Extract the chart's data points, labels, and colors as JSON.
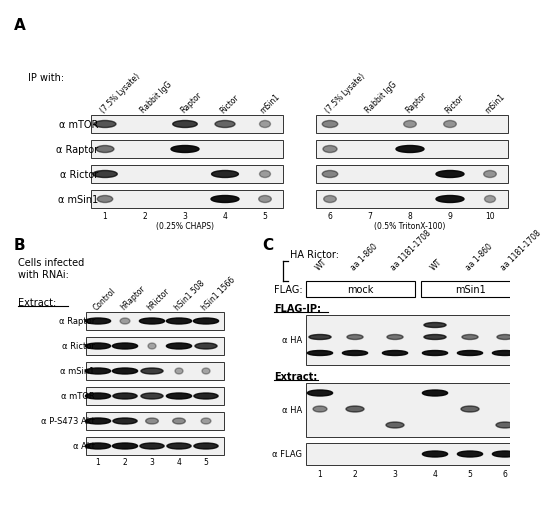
{
  "fig_width": 5.0,
  "fig_height": 5.05,
  "bg_color": "#ffffff",
  "panel_A": {
    "label": "A",
    "ip_label": "IP with:",
    "col_labels_left": [
      "(7.5% Lysate)",
      "Rabbit IgG",
      "Raptor",
      "Rictor",
      "mSin1"
    ],
    "col_labels_right": [
      "(7.5% Lysate)",
      "Rabbit IgG",
      "Raptor",
      "Rictor",
      "mSin1"
    ],
    "row_labels": [
      "α mTOR",
      "α Raptor",
      "α Rictor",
      "α mSin1"
    ],
    "bottom_label_left": "(0.25% CHAPS)",
    "bottom_label_right": "(0.5% TritonX-100)",
    "lane_numbers_left": [
      "1",
      "2",
      "3",
      "4",
      "5"
    ],
    "lane_numbers_right": [
      "6",
      "7",
      "8",
      "9",
      "10"
    ],
    "bands_left": {
      "mTOR": [
        1.2,
        0,
        1.5,
        1.0,
        0.3
      ],
      "Raptor": [
        0.8,
        0,
        2.5,
        0,
        0
      ],
      "Rictor": [
        1.5,
        0,
        0,
        1.8,
        0.3
      ],
      "mSin1": [
        0.6,
        0,
        0,
        2.5,
        0.4
      ]
    },
    "bands_right": {
      "mTOR": [
        0.6,
        0,
        0.4,
        0.4,
        0
      ],
      "Raptor": [
        0.5,
        0,
        2.5,
        0,
        0
      ],
      "Rictor": [
        0.6,
        0,
        0,
        2.2,
        0.4
      ],
      "mSin1": [
        0.4,
        0,
        0,
        2.5,
        0.3
      ]
    }
  },
  "panel_B": {
    "label": "B",
    "title1": "Cells infected",
    "title2": "with RNAi:",
    "extract_label": "Extract:",
    "col_labels": [
      "Control",
      "hRaptor",
      "hRictor",
      "hSin1 508",
      "hSin1 1566"
    ],
    "row_labels": [
      "α Raptor",
      "α Rictor",
      "α mSin1",
      "α mTOR",
      "α P-S473 Akt",
      "α Akt"
    ],
    "lane_numbers": [
      "1",
      "2",
      "3",
      "4",
      "5"
    ],
    "bands": {
      "Raptor": [
        2.0,
        0.3,
        2.0,
        2.0,
        2.0
      ],
      "Rictor": [
        2.0,
        2.0,
        0.2,
        2.0,
        1.5
      ],
      "mSin1": [
        2.0,
        2.0,
        1.5,
        0.2,
        0.2
      ],
      "mTOR": [
        2.0,
        1.8,
        1.5,
        2.0,
        1.8
      ],
      "P-S473 Akt": [
        2.0,
        1.8,
        0.5,
        0.5,
        0.3
      ],
      "Akt": [
        2.0,
        2.0,
        1.8,
        1.8,
        1.8
      ]
    }
  },
  "panel_C": {
    "label": "C",
    "ha_rictor_label": "HA Rictor:",
    "flag_label": "FLAG:",
    "col_labels": [
      "WT",
      "aa 1-860",
      "aa 1181-1708",
      "WT",
      "aa 1-860",
      "aa 1181-1708"
    ],
    "mock_label": "mock",
    "msin1_label": "mSin1",
    "flagip_label": "FLAG-IP:",
    "extract_label": "Extract:",
    "flag_blot_label": "α FLAG",
    "ha_blot_label": "α HA",
    "lane_numbers": [
      "1",
      "2",
      "3",
      "4",
      "5",
      "6"
    ],
    "flagip_ha_bands_top": [
      0,
      0,
      0,
      1.5,
      0,
      0
    ],
    "flagip_ha_bands_mid": [
      1.5,
      0.8,
      0.8,
      1.5,
      0.8,
      0.8
    ],
    "flagip_ha_bands_bot": [
      2.0,
      2.0,
      2.0,
      2.0,
      2.0,
      2.0
    ],
    "extract_ha_bands_top": [
      2.0,
      0,
      0,
      2.8,
      0,
      0
    ],
    "extract_ha_bands_mid": [
      0.6,
      1.0,
      0,
      0,
      1.0,
      0
    ],
    "extract_ha_bands_bot": [
      0,
      0,
      1.0,
      0,
      0,
      1.0
    ],
    "extract_flag_bands": [
      0,
      0,
      0,
      2.0,
      2.0,
      2.0
    ]
  }
}
